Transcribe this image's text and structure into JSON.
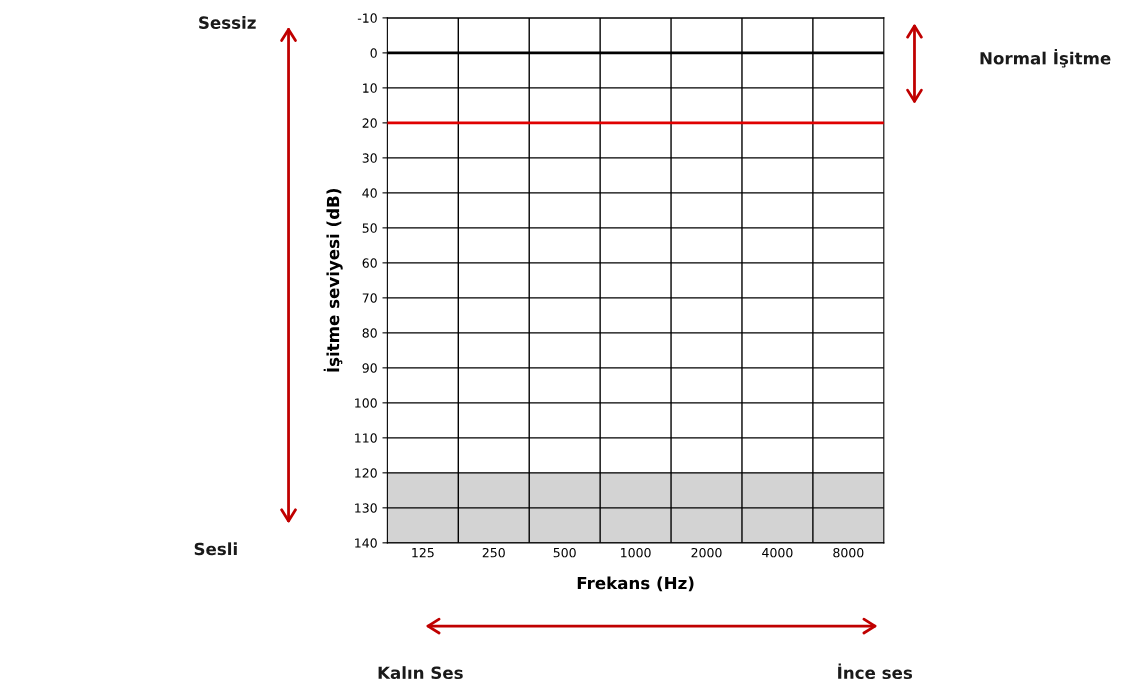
{
  "chart_data": {
    "type": "line",
    "xlabel": "Frekans (Hz)",
    "ylabel": "İşitme seviyesi (dB)",
    "categories": [
      "125",
      "250",
      "500",
      "1000",
      "2000",
      "4000",
      "8000"
    ],
    "ylim": [
      140,
      -10
    ],
    "yticks": [
      -10,
      0,
      10,
      20,
      30,
      40,
      50,
      60,
      70,
      80,
      90,
      100,
      110,
      120,
      130,
      140
    ],
    "grid": "y",
    "ref_lines": [
      {
        "axis": "y",
        "value": 0,
        "color": "#000000"
      },
      {
        "axis": "y",
        "value": 20,
        "color": "#e00000"
      }
    ],
    "bands": [
      {
        "axis": "y",
        "from": 120,
        "to": 140,
        "color": "#d3d3d3"
      }
    ],
    "annotations": [
      "Sessiz",
      "Sesli",
      "Normal İşitme",
      "Kalın Ses",
      "İnce ses"
    ]
  }
}
